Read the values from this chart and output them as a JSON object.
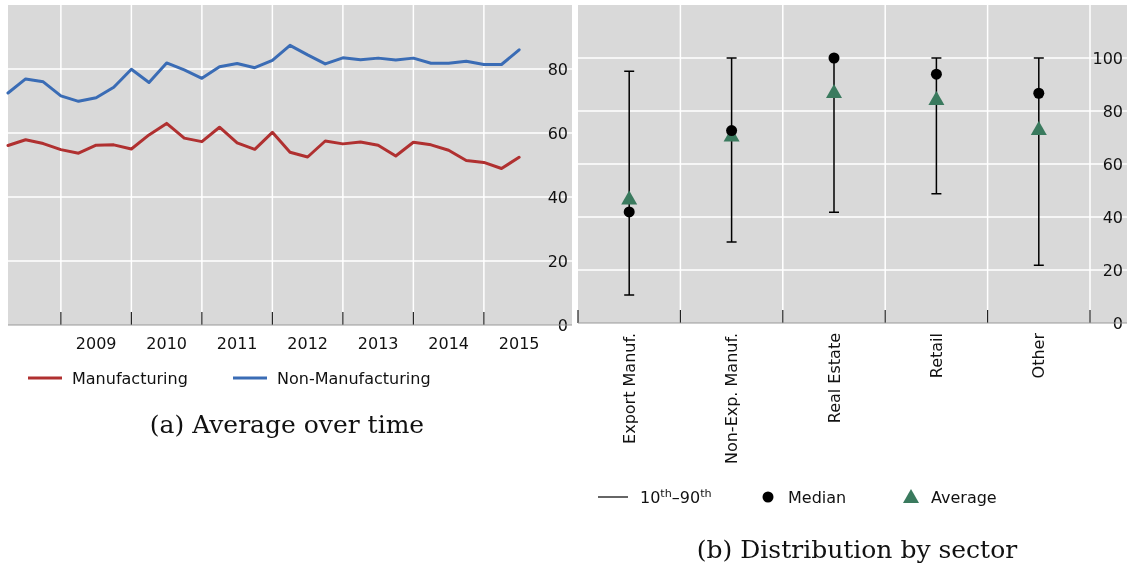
{
  "chart_data": [
    {
      "type": "line",
      "title": "(a) Average over time",
      "x": [
        2008.25,
        2008.5,
        2008.75,
        2009,
        2009.25,
        2009.5,
        2009.75,
        2010,
        2010.25,
        2010.5,
        2010.75,
        2011,
        2011.25,
        2011.5,
        2011.75,
        2012,
        2012.25,
        2012.5,
        2012.75,
        2013,
        2013.25,
        2013.5,
        2013.75,
        2014,
        2014.25,
        2014.5,
        2014.75,
        2015,
        2015.25,
        2015.5
      ],
      "xlim": [
        2008.25,
        2016.25
      ],
      "xticks": [
        {
          "value": 2009,
          "label": null
        },
        {
          "value": 2010,
          "label": null
        },
        {
          "value": 2011,
          "label": null
        },
        {
          "value": 2012,
          "label": null
        },
        {
          "value": 2013,
          "label": null
        },
        {
          "value": 2014,
          "label": null
        },
        {
          "value": 2015,
          "label": null
        },
        {
          "value": 2009.5,
          "label": "2009"
        },
        {
          "value": 2010.5,
          "label": "2010"
        },
        {
          "value": 2011.5,
          "label": "2011"
        },
        {
          "value": 2012.5,
          "label": "2012"
        },
        {
          "value": 2013.5,
          "label": "2013"
        },
        {
          "value": 2014.5,
          "label": "2014"
        },
        {
          "value": 2015.5,
          "label": "2015"
        }
      ],
      "ylim": [
        0,
        100
      ],
      "yticks": [
        0,
        20,
        40,
        60,
        80
      ],
      "grid": true,
      "legend": "bottom",
      "series": [
        {
          "name": "Manufacturing",
          "color": "#b03030",
          "values": [
            56.1,
            57.9,
            56.7,
            54.8,
            53.7,
            56.2,
            56.3,
            55.0,
            59.4,
            63.0,
            58.4,
            57.3,
            61.8,
            56.9,
            54.9,
            60.2,
            54.0,
            52.5,
            57.5,
            56.6,
            57.2,
            56.2,
            52.8,
            57.1,
            56.3,
            54.6,
            51.4,
            50.8,
            48.9,
            52.4
          ]
        },
        {
          "name": "Non-Manufacturing",
          "color": "#3a6cb5",
          "values": [
            72.5,
            76.9,
            76.0,
            71.6,
            69.9,
            71.0,
            74.3,
            79.9,
            75.8,
            81.9,
            79.7,
            77.1,
            80.7,
            81.7,
            80.4,
            82.7,
            87.4,
            84.4,
            81.6,
            83.5,
            82.9,
            83.4,
            82.8,
            83.4,
            81.8,
            81.8,
            82.4,
            81.4,
            81.4,
            86.0
          ]
        }
      ]
    },
    {
      "type": "scatter",
      "title": "(b) Distribution by sector",
      "categories": [
        "Export Manuf.",
        "Non-Exp. Manuf.",
        "Real Estate",
        "Retail",
        "Other"
      ],
      "ylim": [
        0,
        120
      ],
      "yticks": [
        0,
        20,
        40,
        60,
        80,
        100
      ],
      "grid": true,
      "legend": "bottom",
      "annotations": [
        "10$^{th}$–90$^{th}$"
      ],
      "series": [
        {
          "name": "Median",
          "color": "#000000",
          "marker": "circle",
          "values": [
            41.9,
            72.6,
            100,
            93.9,
            86.7
          ],
          "errors": [
            [
              10.6,
              95
            ],
            [
              30.6,
              100
            ],
            [
              41.8,
              100
            ],
            [
              48.8,
              100
            ],
            [
              21.8,
              100
            ]
          ]
        },
        {
          "name": "Average",
          "color": "#3a7a5e",
          "marker": "triangle",
          "values": [
            47,
            70.8,
            87.2,
            84.5,
            73.2
          ]
        }
      ]
    }
  ]
}
